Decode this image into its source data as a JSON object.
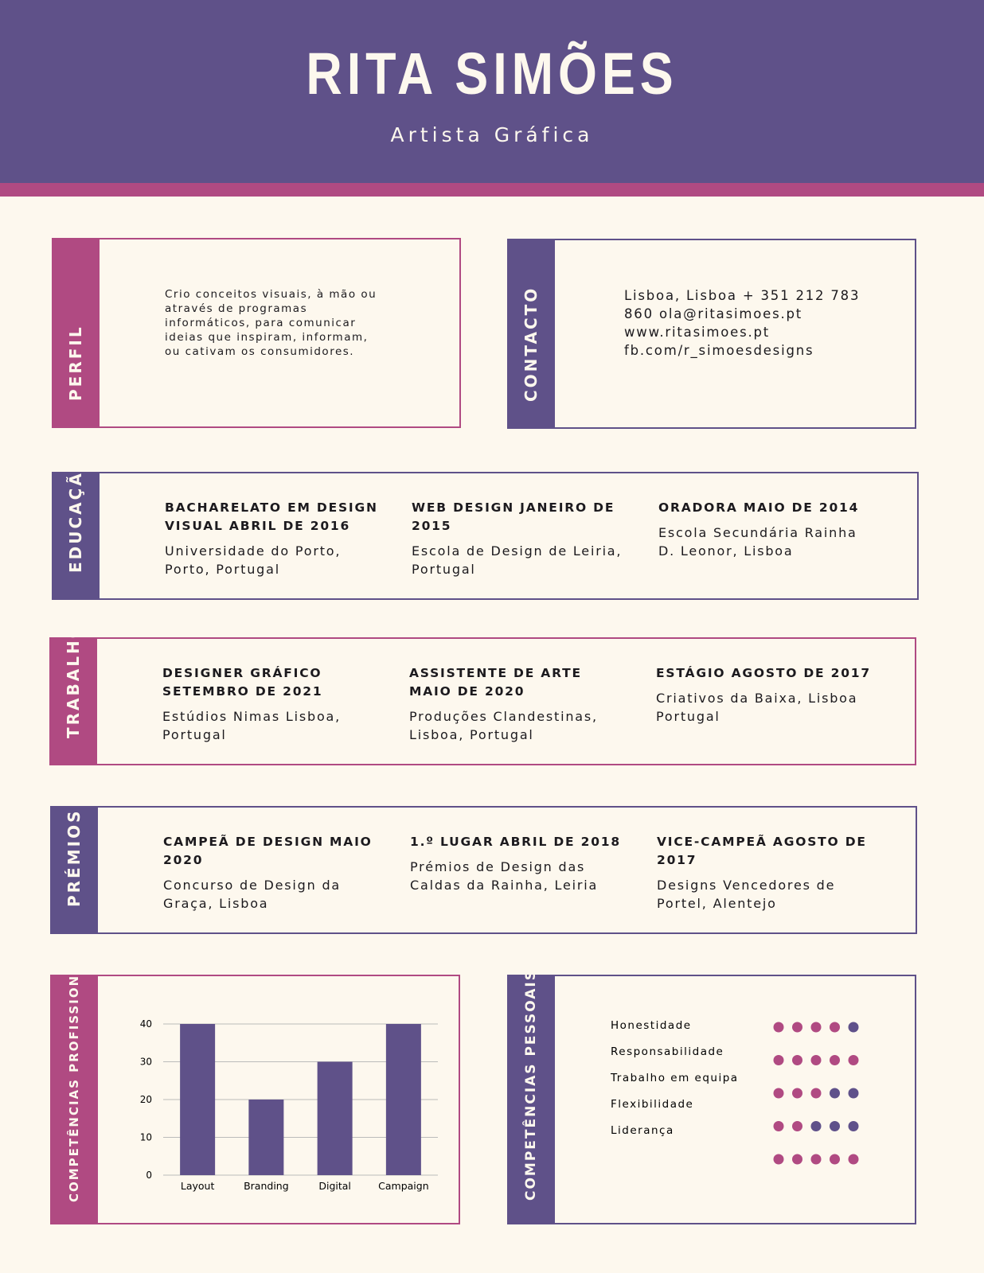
{
  "header": {
    "name": "RITA SIMÕES",
    "subtitle": "Artista Gráfica"
  },
  "perfil": {
    "label": "PERFIL",
    "text": "Crio conceitos visuais, à mão ou através de programas informáticos, para comunicar ideias que inspiram, informam, ou cativam os consumidores."
  },
  "contacto": {
    "label": "CONTACTO",
    "lines": [
      "Lisboa, Lisboa + 351 212 783",
      "860 ola@ritasimoes.pt",
      "www.ritasimoes.pt",
      "fb.com/r_simoesdesigns"
    ]
  },
  "educacao": {
    "label": "EDUCAÇÃO",
    "items": [
      {
        "title": "BACHARELATO EM DESIGN VISUAL ABRIL DE 2016",
        "place": "Universidade do Porto, Porto, Portugal"
      },
      {
        "title": "WEB DESIGN JANEIRO DE 2015",
        "place": "Escola de Design de Leiria, Portugal"
      },
      {
        "title": "ORADORA MAIO DE 2014",
        "place": "Escola Secundária Rainha D. Leonor, Lisboa"
      }
    ]
  },
  "trabalho": {
    "label": "TRABALHO",
    "items": [
      {
        "title": "DESIGNER GRÁFICO SETEMBRO DE 2021",
        "place": "Estúdios Nimas Lisboa, Portugal"
      },
      {
        "title": "ASSISTENTE DE ARTE MAIO DE 2020",
        "place": "Produções Clandestinas, Lisboa, Portugal"
      },
      {
        "title": "ESTÁGIO AGOSTO DE 2017",
        "place": "Criativos da Baixa, Lisboa Portugal"
      }
    ]
  },
  "premios": {
    "label": "PRÉMIOS",
    "items": [
      {
        "title": "CAMPEÃ DE DESIGN MAIO 2020",
        "place": "Concurso de Design da Graça, Lisboa"
      },
      {
        "title": "1.º LUGAR ABRIL DE 2018",
        "place": "Prémios de Design das Caldas da Rainha, Leiria"
      },
      {
        "title": "VICE-CAMPEÃ AGOSTO DE 2017",
        "place": "Designs Vencedores de Portel, Alentejo"
      }
    ]
  },
  "competencias_profissionais": {
    "label": "COMPETÊNCIAS PROFISSIONAIS"
  },
  "chart_data": {
    "type": "bar",
    "categories": [
      "Layout",
      "Branding",
      "Digital",
      "Campaign"
    ],
    "values": [
      40,
      20,
      30,
      40
    ],
    "color": "#5f5189",
    "ylim": [
      0,
      40
    ],
    "yticks": [
      0,
      10,
      20,
      30,
      40
    ],
    "grid": true
  },
  "competencias_pessoais": {
    "label": "COMPETÊNCIAS PESSOAIS",
    "skills": [
      "Honestidade",
      "Responsabilidade",
      "Trabalho em equipa",
      "Flexibilidade",
      "Liderança"
    ],
    "ratings": [
      4,
      5,
      3,
      2,
      5
    ],
    "max": 5,
    "colors": {
      "on": "#b04a82",
      "off": "#5f518a"
    }
  }
}
